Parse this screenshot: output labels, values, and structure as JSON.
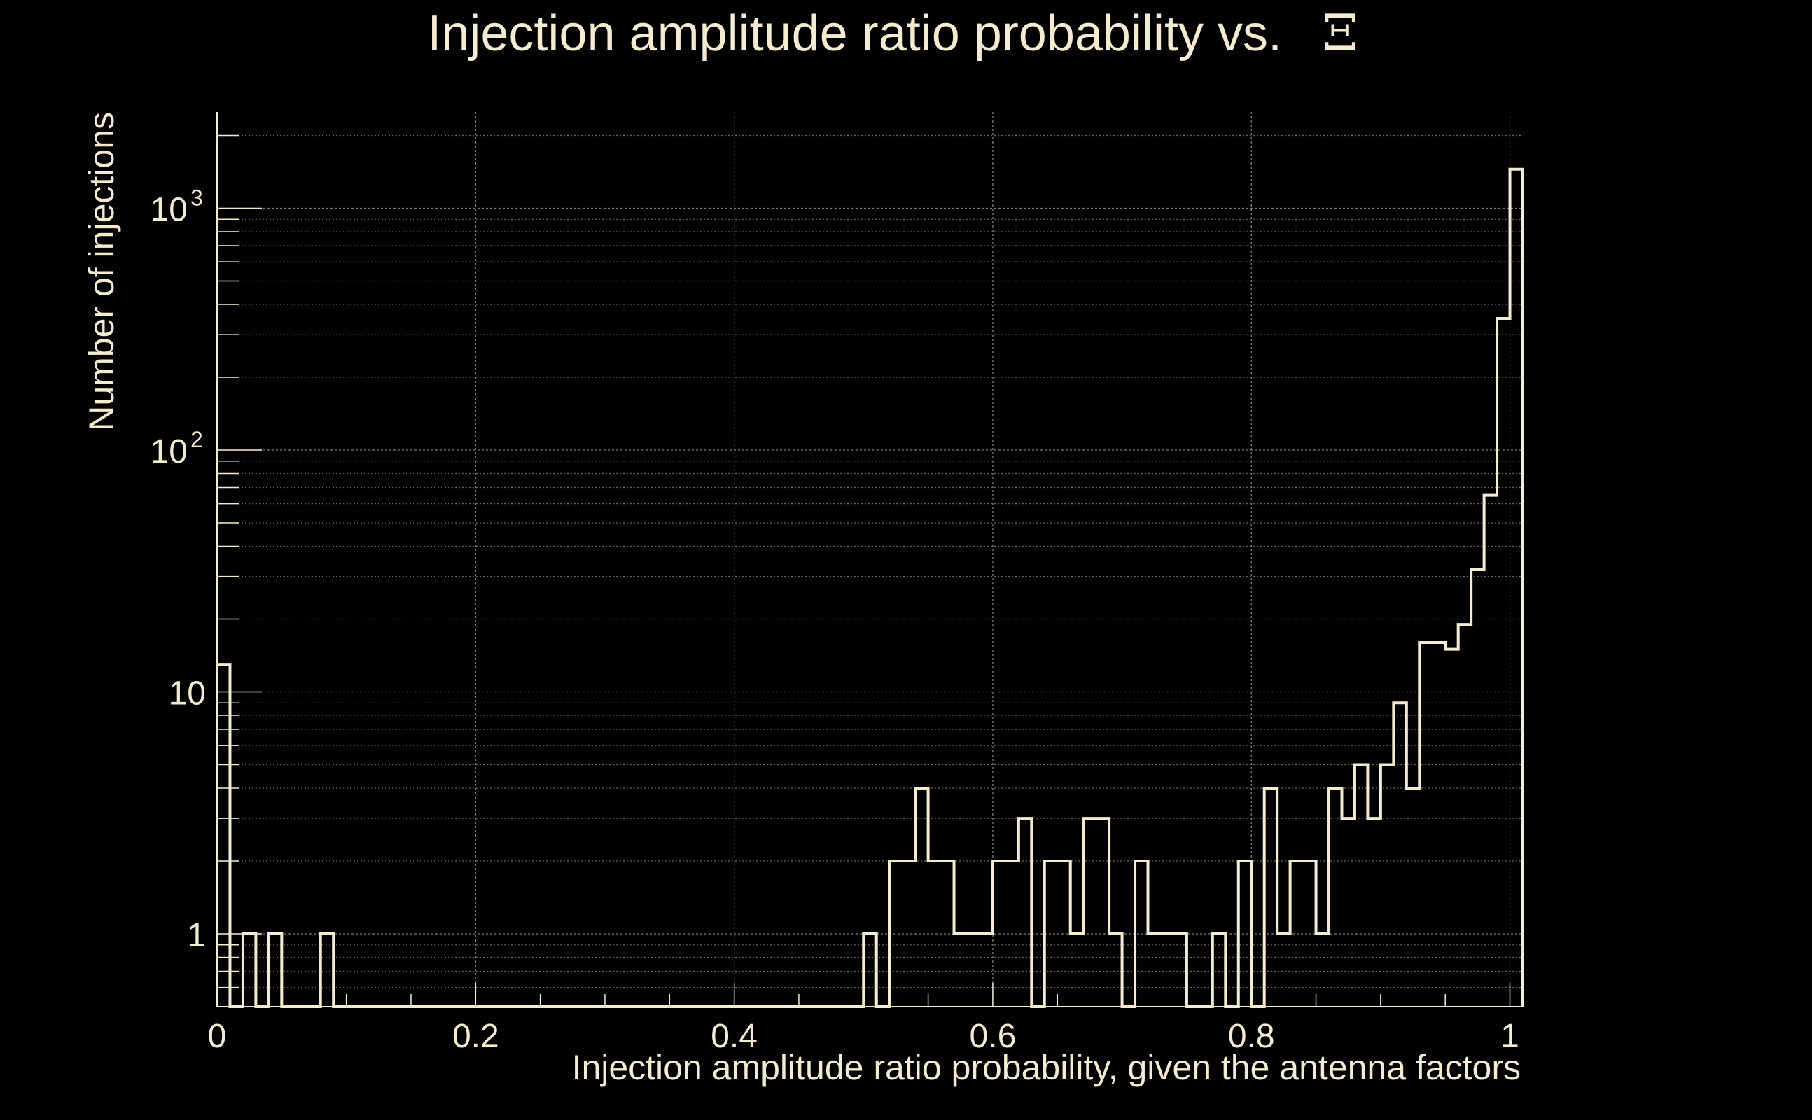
{
  "chart_data": {
    "type": "histogram",
    "title": "Injection amplitude ratio probability vs.",
    "title_symbol": "Ξ",
    "xlabel": "Injection amplitude ratio probability, given the antenna factors",
    "ylabel": "Number of injections",
    "x_scale": "linear",
    "y_scale": "log",
    "xlim": [
      0,
      1.01
    ],
    "ylim": [
      0.5,
      2500
    ],
    "grid": true,
    "x_ticks": [
      {
        "value": 0,
        "label": "0"
      },
      {
        "value": 0.2,
        "label": "0.2"
      },
      {
        "value": 0.4,
        "label": "0.4"
      },
      {
        "value": 0.6,
        "label": "0.6"
      },
      {
        "value": 0.8,
        "label": "0.8"
      },
      {
        "value": 1,
        "label": "1"
      }
    ],
    "y_ticks": [
      {
        "value": 1,
        "base": "1",
        "exp": ""
      },
      {
        "value": 10,
        "base": "10",
        "exp": ""
      },
      {
        "value": 100,
        "base": "10",
        "exp": "2"
      },
      {
        "value": 1000,
        "base": "10",
        "exp": "3"
      }
    ],
    "bin_width": 0.01,
    "bin_start": 0,
    "counts": [
      13,
      0,
      1,
      0,
      1,
      0,
      0,
      0,
      1,
      0,
      0,
      0,
      0,
      0,
      0,
      0,
      0,
      0,
      0,
      0,
      0,
      0,
      0,
      0,
      0,
      0,
      0,
      0,
      0,
      0,
      0,
      0,
      0,
      0,
      0,
      0,
      0,
      0,
      0,
      0,
      0,
      0,
      0,
      0,
      0,
      0,
      0,
      0,
      0,
      0,
      1,
      0,
      2,
      2,
      4,
      2,
      2,
      1,
      1,
      1,
      2,
      2,
      3,
      0,
      2,
      2,
      1,
      3,
      3,
      1,
      0,
      2,
      1,
      1,
      1,
      0,
      0,
      1,
      0,
      2,
      0,
      4,
      1,
      2,
      2,
      1,
      4,
      3,
      5,
      3,
      5,
      9,
      4,
      16,
      16,
      15,
      19,
      32,
      65,
      350,
      1450
    ]
  }
}
